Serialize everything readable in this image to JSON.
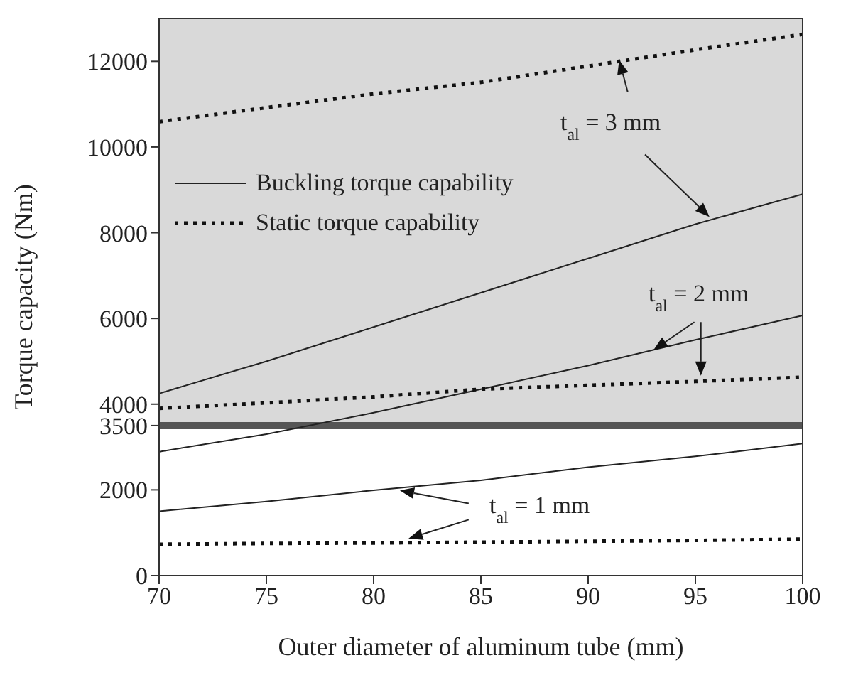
{
  "chart_data": {
    "type": "line",
    "xlabel": "Outer diameter of aluminum tube (mm)",
    "ylabel": "Torque capacity (Nm)",
    "x": [
      70,
      75,
      80,
      85,
      90,
      95,
      100
    ],
    "series": [
      {
        "name": "Buckling torque capability",
        "color": "#222222",
        "line_style": "solid",
        "values": [
          4250,
          5000,
          5800,
          6600,
          7400,
          8200,
          8900
        ]
      },
      {
        "name": "Static torque capability",
        "color": "#111111",
        "line_style": "dotted",
        "values": [
          10590,
          10920,
          11240,
          11510,
          11890,
          12270,
          12630
        ]
      },
      {
        "color": "#222222",
        "line_style": "solid",
        "values": [
          2890,
          3300,
          3800,
          4350,
          4900,
          5500,
          6070
        ]
      },
      {
        "color": "#111111",
        "line_style": "dotted",
        "values": [
          3900,
          4030,
          4170,
          4350,
          4440,
          4530,
          4630
        ]
      },
      {
        "color": "#222222",
        "line_style": "solid",
        "values": [
          1500,
          1730,
          1990,
          2220,
          2530,
          2780,
          3080
        ]
      },
      {
        "color": "#111111",
        "line_style": "dotted",
        "values": [
          730,
          750,
          760,
          780,
          800,
          820,
          850
        ]
      }
    ],
    "xlim": [
      70,
      100
    ],
    "xticks": [
      70,
      75,
      80,
      85,
      90,
      95,
      100
    ],
    "ylim": [
      0,
      13000
    ],
    "yticks": [
      0,
      2000,
      3500,
      4000,
      6000,
      8000,
      10000,
      12000
    ],
    "bands": [
      {
        "axis": "y",
        "from": 3500,
        "to": 13000,
        "color": "#d9d9d9"
      }
    ],
    "ref_lines": [
      {
        "axis": "y",
        "value": 3500,
        "color": "#555555"
      }
    ],
    "annotations": [
      {
        "text": "t$_{al}$ = 3 mm",
        "x": 91.4,
        "y": 12000
      },
      {
        "text": "t$_{al}$ = 2 mm",
        "x": 93,
        "y": 5250
      },
      "t$_{al}$ = 1 mm"
    ],
    "legend": "top left"
  }
}
